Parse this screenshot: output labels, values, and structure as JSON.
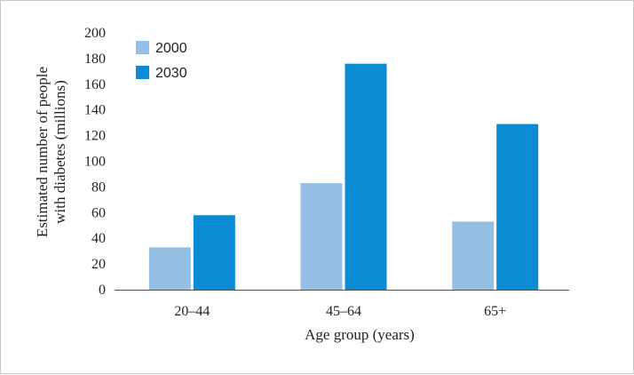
{
  "chart_data": {
    "type": "bar",
    "title": "",
    "xlabel": "Age group (years)",
    "ylabel": [
      "Estimated number of people",
      "with diabetes (millions)"
    ],
    "categories": [
      "20–44",
      "45–64",
      "65+"
    ],
    "series": [
      {
        "name": "2000",
        "color": "#96bfe6",
        "values": [
          33,
          83,
          53
        ]
      },
      {
        "name": "2030",
        "color": "#0a8bd2",
        "values": [
          58,
          176,
          129
        ]
      }
    ],
    "ylim": [
      0,
      200
    ],
    "yticks": [
      0,
      20,
      40,
      60,
      80,
      100,
      120,
      140,
      160,
      180,
      200
    ],
    "grid": false,
    "legend": "top-left"
  }
}
